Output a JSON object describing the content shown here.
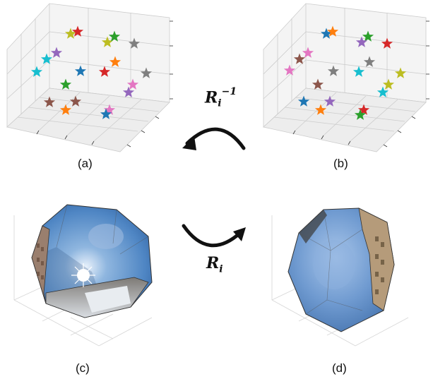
{
  "captions": {
    "a": "(a)",
    "b": "(b)",
    "c": "(c)",
    "d": "(d)"
  },
  "labels": {
    "inverse_rotation": {
      "base": "R",
      "sub": "i",
      "sup": "−1"
    },
    "rotation": {
      "base": "R",
      "sub": "i"
    }
  },
  "star_colors": [
    "#1f77b4",
    "#ff7f0e",
    "#2ca02c",
    "#d62728",
    "#9467bd",
    "#8c564b",
    "#e377c2",
    "#7f7f7f",
    "#bcbd22",
    "#17becf"
  ]
}
